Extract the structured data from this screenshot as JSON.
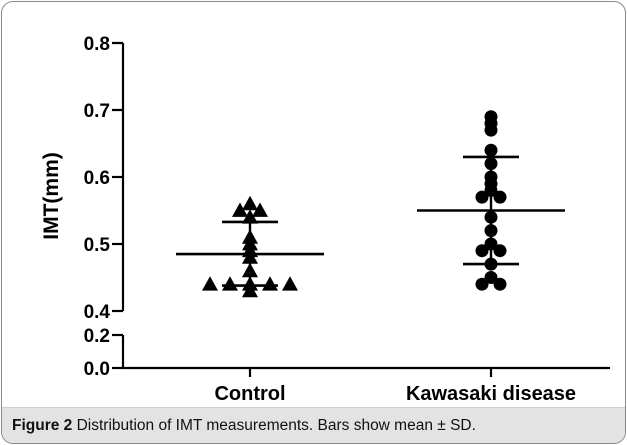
{
  "figure": {
    "caption_label": "Figure 2",
    "caption_text": "Distribution of IMT measurements. Bars show mean ± SD."
  },
  "chart_data": {
    "type": "scatter",
    "ylabel": "IMT(mm)",
    "xlabel": "",
    "categories": [
      "Control",
      "Kawasaki disease"
    ],
    "y_axis_break": true,
    "y_segments": [
      {
        "range": [
          0.0,
          0.2
        ],
        "ticks": [
          "0.0",
          "0.2"
        ]
      },
      {
        "range": [
          0.4,
          0.8
        ],
        "ticks": [
          "0.4",
          "0.5",
          "0.6",
          "0.7",
          "0.8"
        ]
      }
    ],
    "series": [
      {
        "category": "Control",
        "marker": "triangle",
        "values": [
          0.55,
          0.55,
          0.56,
          0.54,
          0.5,
          0.51,
          0.49,
          0.48,
          0.46,
          0.44,
          0.44,
          0.44,
          0.44,
          0.44,
          0.43
        ],
        "mean": 0.485,
        "sd_low": 0.438,
        "sd_high": 0.533
      },
      {
        "category": "Kawasaki disease",
        "marker": "circle",
        "values": [
          0.69,
          0.68,
          0.67,
          0.64,
          0.62,
          0.6,
          0.59,
          0.58,
          0.57,
          0.57,
          0.54,
          0.52,
          0.5,
          0.49,
          0.49,
          0.47,
          0.45,
          0.44,
          0.44
        ],
        "mean": 0.55,
        "sd_low": 0.47,
        "sd_high": 0.63
      }
    ],
    "legend": "none",
    "grid": false
  }
}
